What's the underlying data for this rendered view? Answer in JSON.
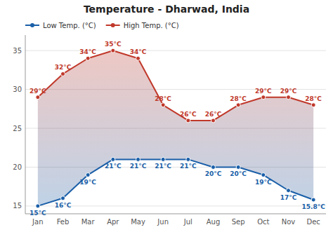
{
  "chart_data": {
    "type": "line",
    "title": "Temperature - Dharwad, India",
    "categories": [
      "Jan",
      "Feb",
      "Mar",
      "Apr",
      "May",
      "Jun",
      "Jul",
      "Aug",
      "Sep",
      "Oct",
      "Nov",
      "Dec"
    ],
    "series": [
      {
        "name": "Low Temp. (°C)",
        "color": "#1a5fa8",
        "marker": "circle",
        "values": [
          15,
          16,
          19,
          21,
          21,
          21,
          21,
          20,
          20,
          19,
          17,
          15.8
        ],
        "value_labels": [
          "15°C",
          "16°C",
          "19°C",
          "21°C",
          "21°C",
          "21°C",
          "21°C",
          "20°C",
          "20°C",
          "19°C",
          "17°C",
          "15.8°C"
        ]
      },
      {
        "name": "High Temp. (°C)",
        "color": "#c0392b",
        "marker": "circle",
        "values": [
          29,
          32,
          34,
          35,
          34,
          28,
          26,
          26,
          28,
          29,
          29,
          28
        ],
        "value_labels": [
          "29°C",
          "32°C",
          "34°C",
          "35°C",
          "34°C",
          "28°C",
          "26°C",
          "26°C",
          "28°C",
          "29°C",
          "29°C",
          "28°C"
        ]
      }
    ],
    "ylim": [
      14.0,
      37.0
    ],
    "yticks": [
      15,
      20,
      25,
      30,
      35
    ],
    "grid": true,
    "legend": "top-left",
    "data_labels": true
  }
}
